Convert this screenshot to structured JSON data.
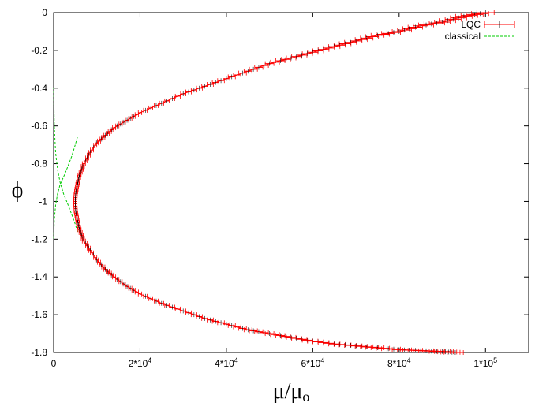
{
  "chart_data": {
    "type": "line",
    "xlabel": "μ/μo",
    "ylabel": "ϕ",
    "xlim": [
      0,
      110000
    ],
    "ylim": [
      -1.8,
      0
    ],
    "xticks": [
      {
        "value": 0,
        "label": "0"
      },
      {
        "value": 20000,
        "label": "2*10^4"
      },
      {
        "value": 40000,
        "label": "4*10^4"
      },
      {
        "value": 60000,
        "label": "6*10^4"
      },
      {
        "value": 80000,
        "label": "8*10^4"
      },
      {
        "value": 100000,
        "label": "1*10^5"
      }
    ],
    "yticks": [
      {
        "value": 0,
        "label": "0"
      },
      {
        "value": -0.2,
        "label": "-0.2"
      },
      {
        "value": -0.4,
        "label": "-0.4"
      },
      {
        "value": -0.6,
        "label": "-0.6"
      },
      {
        "value": -0.8,
        "label": "-0.8"
      },
      {
        "value": -1.0,
        "label": "-1"
      },
      {
        "value": -1.2,
        "label": "-1.2"
      },
      {
        "value": -1.4,
        "label": "-1.4"
      },
      {
        "value": -1.6,
        "label": "-1.6"
      },
      {
        "value": -1.8,
        "label": "-1.8"
      }
    ],
    "legend_position": "top-right",
    "series": [
      {
        "name": "LQC",
        "style": "line with error bars",
        "color": "#ff0000",
        "bar_color": "#000000",
        "x": [
          100000,
          95000,
          90000,
          85000,
          80000,
          75000,
          70000,
          65000,
          60000,
          55000,
          50000,
          45000,
          40000,
          35000,
          30000,
          25000,
          20000,
          17000,
          14000,
          12000,
          10000,
          8500,
          7000,
          6000,
          5500,
          5100,
          5000,
          5100,
          5500,
          6000,
          7000,
          8500,
          10000,
          12000,
          14000,
          17000,
          20000,
          25000,
          30000,
          35000,
          40000,
          45000,
          50000,
          55000,
          60000,
          65000,
          70000,
          75000,
          80000,
          85000,
          90000,
          93000
        ],
        "y": [
          0.0,
          -0.02,
          -0.05,
          -0.07,
          -0.1,
          -0.12,
          -0.15,
          -0.18,
          -0.21,
          -0.24,
          -0.27,
          -0.31,
          -0.35,
          -0.39,
          -0.43,
          -0.48,
          -0.53,
          -0.57,
          -0.61,
          -0.65,
          -0.69,
          -0.74,
          -0.8,
          -0.86,
          -0.91,
          -0.96,
          -1.0,
          -1.05,
          -1.1,
          -1.15,
          -1.21,
          -1.26,
          -1.31,
          -1.36,
          -1.4,
          -1.45,
          -1.49,
          -1.54,
          -1.58,
          -1.62,
          -1.65,
          -1.68,
          -1.7,
          -1.72,
          -1.74,
          -1.755,
          -1.765,
          -1.775,
          -1.785,
          -1.79,
          -1.795,
          -1.8
        ],
        "xerr_fraction": 0.02
      },
      {
        "name": "classical",
        "style": "dashed",
        "color": "#00cc00",
        "branches": [
          {
            "x": [
              5500,
              5000,
              4200,
              3200,
              2300,
              1500,
              900,
              450,
              150,
              20
            ],
            "y": [
              -0.66,
              -0.7,
              -0.76,
              -0.82,
              -0.87,
              -0.91,
              -0.96,
              -1.02,
              -1.1,
              -1.2
            ]
          },
          {
            "x": [
              5500,
              5000,
              4200,
              3200,
              2300,
              1500,
              900,
              450,
              150,
              20
            ],
            "y": [
              -1.16,
              -1.12,
              -1.07,
              -1.01,
              -0.96,
              -0.9,
              -0.83,
              -0.74,
              -0.6,
              -0.4
            ]
          }
        ]
      }
    ]
  }
}
